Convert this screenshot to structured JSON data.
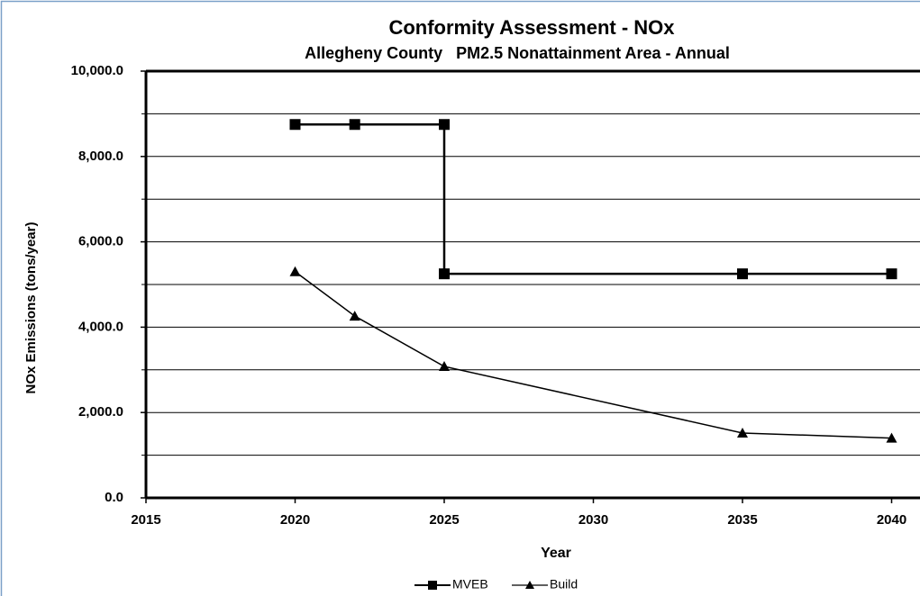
{
  "chart_data": {
    "type": "line",
    "title": "Conformity Assessment - NOx",
    "subtitle": "Allegheny County   PM2.5 Nonattainment Area - Annual",
    "x_label": "Year",
    "y_label": "NOx Emissions (tons/year)",
    "xlim": [
      2015,
      2045
    ],
    "xticks": [
      2015,
      2020,
      2025,
      2030,
      2035,
      2040
    ],
    "ylim": [
      0,
      10000
    ],
    "yticks": [
      {
        "value": 0,
        "label": "0.0"
      },
      {
        "value": 2000,
        "label": "2,000.0"
      },
      {
        "value": 4000,
        "label": "4,000.0"
      },
      {
        "value": 6000,
        "label": "6,000.0"
      },
      {
        "value": 8000,
        "label": "8,000.0"
      },
      {
        "value": 10000,
        "label": "10,000.0"
      }
    ],
    "yminorticks": [
      1000,
      3000,
      5000,
      7000,
      9000
    ],
    "grid": true,
    "legend": "bottom",
    "series": [
      {
        "name": "MVEB",
        "color": "#000000",
        "marker": "square",
        "x": [
          2020,
          2022,
          2025,
          2025,
          2035,
          2040
        ],
        "values": [
          8750,
          8750,
          8750,
          5250,
          5250,
          5250
        ]
      },
      {
        "name": "Build",
        "color": "#000000",
        "marker": "triangle",
        "x": [
          2020,
          2022,
          2025,
          2035,
          2040
        ],
        "values": [
          5300,
          4260,
          3080,
          1520,
          1400
        ]
      }
    ]
  }
}
